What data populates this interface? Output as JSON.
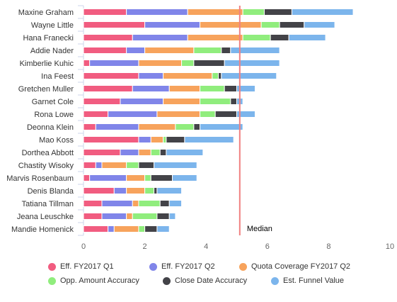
{
  "chart_data": {
    "type": "bar",
    "orientation": "horizontal",
    "stacked": true,
    "categories": [
      "Maxine Graham",
      "Wayne Little",
      "Hana Franecki",
      "Addie Nader",
      "Kimberlie Kuhic",
      "Ina Feest",
      "Gretchen Muller",
      "Garnet Cole",
      "Rona Lowe",
      "Deonna Klein",
      "Mao Koss",
      "Dorthea Abbott",
      "Chastity Wisoky",
      "Marvis Rosenbaum",
      "Denis Blanda",
      "Tatiana Tillman",
      "Jeana Leuschke",
      "Mandie Homenick"
    ],
    "series": [
      {
        "name": "Eff. FY2017 Q1",
        "color": "#f15c80",
        "values": [
          1.4,
          2.0,
          1.6,
          1.4,
          0.2,
          1.8,
          1.6,
          1.2,
          0.8,
          0.4,
          1.8,
          1.2,
          0.4,
          0.2,
          1.0,
          0.6,
          0.6,
          0.8
        ]
      },
      {
        "name": "Eff. FY2017 Q2",
        "color": "#8085e9",
        "values": [
          2.0,
          1.8,
          1.8,
          0.6,
          1.6,
          0.8,
          1.2,
          1.4,
          1.6,
          1.4,
          0.4,
          0.6,
          0.2,
          1.2,
          0.4,
          1.0,
          0.8,
          0.2
        ]
      },
      {
        "name": "Quota Coverage FY2017 Q2",
        "color": "#f7a35c",
        "values": [
          1.8,
          2.0,
          1.8,
          1.6,
          1.4,
          1.6,
          1.0,
          1.2,
          1.4,
          1.2,
          0.4,
          0.4,
          0.8,
          0.6,
          0.6,
          0.2,
          0.2,
          0.8
        ]
      },
      {
        "name": "Opp. Amount Accuracy",
        "color": "#90ed7d",
        "values": [
          0.7,
          0.6,
          0.9,
          0.9,
          0.4,
          0.2,
          0.8,
          1.0,
          0.5,
          0.6,
          0.1,
          0.3,
          0.4,
          0.2,
          0.3,
          0.7,
          0.8,
          0.2
        ]
      },
      {
        "name": "Close Date Accuracy",
        "color": "#434348",
        "values": [
          0.9,
          0.8,
          0.6,
          0.3,
          1.0,
          0.1,
          0.4,
          0.2,
          0.7,
          0.2,
          0.6,
          0.2,
          0.5,
          0.7,
          0.1,
          0.3,
          0.4,
          0.4
        ]
      },
      {
        "name": "Est. Funnel Value",
        "color": "#7cb5ec",
        "values": [
          2.0,
          1.0,
          1.2,
          1.6,
          1.8,
          1.8,
          0.6,
          0.2,
          0.6,
          1.4,
          1.6,
          1.2,
          1.4,
          0.8,
          0.8,
          0.4,
          0.2,
          0.4
        ]
      }
    ],
    "xlim": [
      0,
      10
    ],
    "xticks": [
      0,
      2,
      4,
      6,
      8,
      10
    ],
    "median": {
      "value": 5.1,
      "label": "Median",
      "color": "#f08080"
    },
    "grid": false,
    "legend_placement": "bottom"
  }
}
